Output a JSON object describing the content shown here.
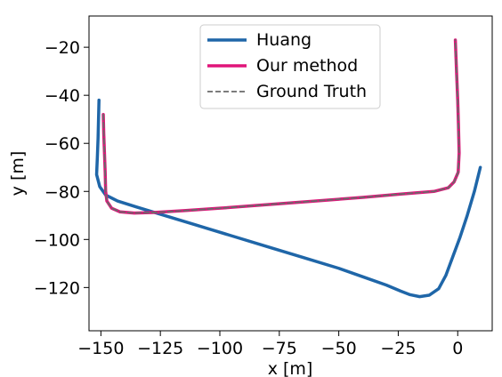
{
  "chart_data": {
    "type": "line",
    "title": "",
    "xlabel": "x [m]",
    "ylabel": "y [m]",
    "xlim": [
      -155,
      14.5
    ],
    "ylim": [
      -138,
      -7
    ],
    "xticks": [
      -150,
      -125,
      -100,
      -75,
      -50,
      -25,
      0
    ],
    "yticks": [
      -20,
      -40,
      -60,
      -80,
      -100,
      -120
    ],
    "xtick_labels": [
      "−150",
      "−125",
      "−100",
      "−75",
      "−50",
      "−25",
      "0"
    ],
    "ytick_labels": [
      "−20",
      "−40",
      "−60",
      "−80",
      "−100",
      "−120"
    ],
    "grid": false,
    "legend_position": "top-center",
    "series": [
      {
        "name": "Huang",
        "color": "#1f66a8",
        "style": "solid",
        "points": [
          [
            -150.8,
            -42
          ],
          [
            -151.0,
            -50
          ],
          [
            -151.2,
            -58
          ],
          [
            -151.5,
            -66
          ],
          [
            -151.8,
            -73
          ],
          [
            -150.5,
            -78
          ],
          [
            -148,
            -81.5
          ],
          [
            -143,
            -84
          ],
          [
            -135,
            -86.5
          ],
          [
            -125,
            -89.5
          ],
          [
            -110,
            -94
          ],
          [
            -95,
            -98.5
          ],
          [
            -80,
            -103
          ],
          [
            -65,
            -107.5
          ],
          [
            -50,
            -112
          ],
          [
            -40,
            -115.5
          ],
          [
            -30,
            -119
          ],
          [
            -24,
            -121.5
          ],
          [
            -20,
            -123
          ],
          [
            -16,
            -123.8
          ],
          [
            -12,
            -123.2
          ],
          [
            -8,
            -120.5
          ],
          [
            -5,
            -115
          ],
          [
            -2,
            -107
          ],
          [
            1,
            -99
          ],
          [
            4,
            -90
          ],
          [
            7,
            -80
          ],
          [
            9.5,
            -70
          ]
        ]
      },
      {
        "name": "Our method",
        "color": "#e0157a",
        "style": "solid",
        "points": [
          [
            -149,
            -48
          ],
          [
            -148.8,
            -56
          ],
          [
            -148.5,
            -64
          ],
          [
            -148.2,
            -72
          ],
          [
            -148,
            -80
          ],
          [
            -147.5,
            -84
          ],
          [
            -145.5,
            -87
          ],
          [
            -142,
            -88.5
          ],
          [
            -136,
            -89
          ],
          [
            -128,
            -88.8
          ],
          [
            -115,
            -88
          ],
          [
            -100,
            -87
          ],
          [
            -80,
            -85.5
          ],
          [
            -60,
            -84
          ],
          [
            -40,
            -82.5
          ],
          [
            -25,
            -81.2
          ],
          [
            -10,
            -80
          ],
          [
            -4,
            -78.5
          ],
          [
            -1.5,
            -76
          ],
          [
            0.2,
            -72
          ],
          [
            0.6,
            -64
          ],
          [
            0.3,
            -52
          ],
          [
            0,
            -42
          ],
          [
            -0.5,
            -30
          ],
          [
            -1,
            -17
          ]
        ]
      },
      {
        "name": "Ground Truth",
        "color": "#6a6a6a",
        "style": "dashed",
        "points": [
          [
            -149,
            -48
          ],
          [
            -148.8,
            -56
          ],
          [
            -148.5,
            -64
          ],
          [
            -148.2,
            -72
          ],
          [
            -148,
            -80
          ],
          [
            -147.5,
            -84
          ],
          [
            -145.5,
            -87
          ],
          [
            -142,
            -88.5
          ],
          [
            -136,
            -89
          ],
          [
            -128,
            -88.8
          ],
          [
            -115,
            -88
          ],
          [
            -100,
            -87
          ],
          [
            -80,
            -85.5
          ],
          [
            -60,
            -84
          ],
          [
            -40,
            -82.5
          ],
          [
            -25,
            -81.2
          ],
          [
            -10,
            -80
          ],
          [
            -4,
            -78.5
          ],
          [
            -1.5,
            -76
          ],
          [
            0.2,
            -72
          ],
          [
            0.6,
            -64
          ],
          [
            0.3,
            -52
          ],
          [
            0,
            -42
          ],
          [
            -0.5,
            -30
          ],
          [
            -1,
            -17
          ]
        ]
      }
    ]
  }
}
